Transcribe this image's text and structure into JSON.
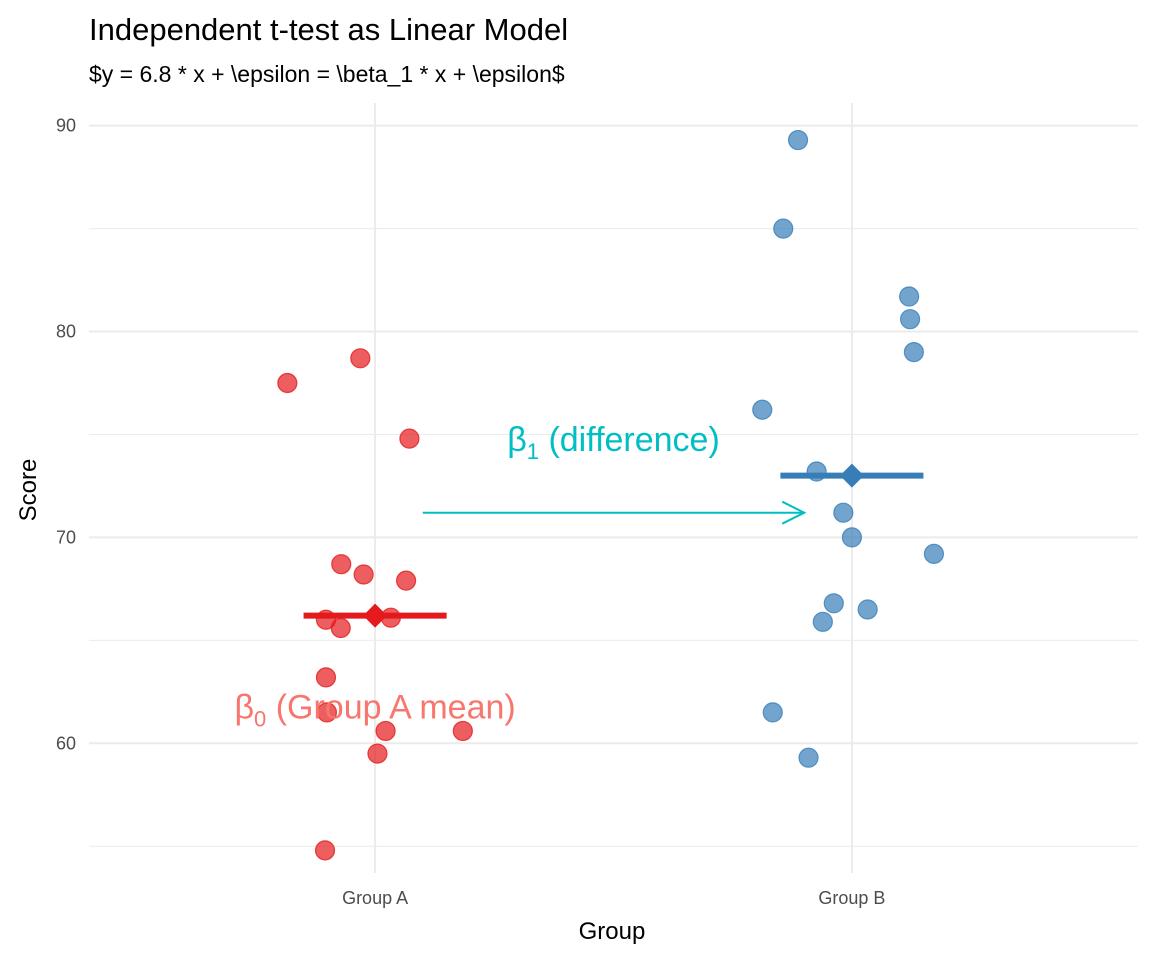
{
  "chart_data": {
    "type": "scatter",
    "title": "Independent t-test as Linear Model",
    "subtitle": "$y = 6.8 * x + \\epsilon = \\beta_1 * x + \\epsilon$",
    "xlabel": "Group",
    "ylabel": "Score",
    "categories": [
      "Group A",
      "Group B"
    ],
    "ylim": [
      53.7,
      91.1
    ],
    "y_ticks": [
      60,
      70,
      80,
      90
    ],
    "grid": true,
    "series": [
      {
        "category": "Group A",
        "color": "#e41a1c",
        "mean": 66.2,
        "points": [
          {
            "x": 0.816,
            "y": 77.5
          },
          {
            "x": 0.969,
            "y": 78.7
          },
          {
            "x": 1.072,
            "y": 74.8
          },
          {
            "x": 0.929,
            "y": 68.7
          },
          {
            "x": 0.976,
            "y": 68.2
          },
          {
            "x": 1.065,
            "y": 67.9
          },
          {
            "x": 0.897,
            "y": 66.0
          },
          {
            "x": 0.928,
            "y": 65.6
          },
          {
            "x": 1.033,
            "y": 66.1
          },
          {
            "x": 0.897,
            "y": 63.2
          },
          {
            "x": 0.899,
            "y": 61.5
          },
          {
            "x": 1.022,
            "y": 60.6
          },
          {
            "x": 1.184,
            "y": 60.6
          },
          {
            "x": 1.005,
            "y": 59.5
          },
          {
            "x": 0.895,
            "y": 54.8
          }
        ]
      },
      {
        "category": "Group B",
        "color": "#377eb8",
        "mean": 73.0,
        "points": [
          {
            "x": 1.887,
            "y": 89.3
          },
          {
            "x": 1.856,
            "y": 85.0
          },
          {
            "x": 2.12,
            "y": 81.7
          },
          {
            "x": 2.122,
            "y": 80.6
          },
          {
            "x": 2.13,
            "y": 79.0
          },
          {
            "x": 1.812,
            "y": 76.2
          },
          {
            "x": 1.926,
            "y": 73.2
          },
          {
            "x": 1.982,
            "y": 71.2
          },
          {
            "x": 2.0,
            "y": 70.0
          },
          {
            "x": 2.172,
            "y": 69.2
          },
          {
            "x": 1.962,
            "y": 66.8
          },
          {
            "x": 1.939,
            "y": 65.9
          },
          {
            "x": 2.033,
            "y": 66.5
          },
          {
            "x": 1.834,
            "y": 61.5
          },
          {
            "x": 1.909,
            "y": 59.3
          }
        ]
      }
    ],
    "annotations": {
      "beta1": {
        "symbol": "β",
        "sub": "1",
        "text": " (difference)",
        "color": "#00bfc4",
        "x": 1.5,
        "y": 74.2
      },
      "beta0": {
        "symbol": "β",
        "sub": "0",
        "text": " (Group A mean)",
        "color": "#f8766d",
        "x": 1.0,
        "y": 61.2
      },
      "arrow": {
        "x_start": 1.1,
        "x_end": 1.9,
        "y": 71.2,
        "color": "#00bfc4"
      }
    }
  }
}
